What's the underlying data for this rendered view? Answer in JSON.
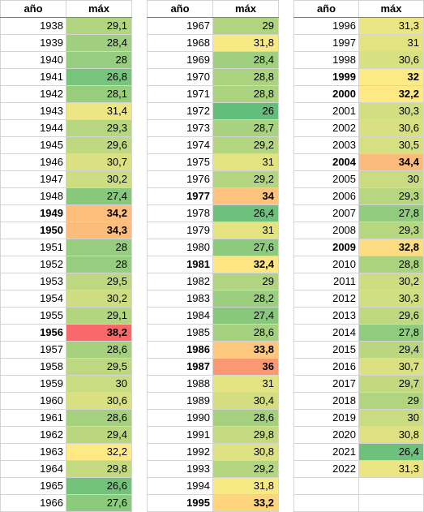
{
  "headers": {
    "year": "año",
    "max": "máx"
  },
  "scale": {
    "min": 26,
    "max": 38.2,
    "low_color": "#63be7b",
    "mid_color": "#ffeb84",
    "high_color": "#f8696b"
  },
  "blocks": [
    [
      {
        "y": "1938",
        "v": "29,1",
        "b": false
      },
      {
        "y": "1939",
        "v": "28,4",
        "b": false
      },
      {
        "y": "1940",
        "v": "28",
        "b": false
      },
      {
        "y": "1941",
        "v": "26,8",
        "b": false
      },
      {
        "y": "1942",
        "v": "28,1",
        "b": false
      },
      {
        "y": "1943",
        "v": "31,4",
        "b": false
      },
      {
        "y": "1944",
        "v": "29,3",
        "b": false
      },
      {
        "y": "1945",
        "v": "29,6",
        "b": false
      },
      {
        "y": "1946",
        "v": "30,7",
        "b": false
      },
      {
        "y": "1947",
        "v": "30,2",
        "b": false
      },
      {
        "y": "1948",
        "v": "27,4",
        "b": false
      },
      {
        "y": "1949",
        "v": "34,2",
        "b": true
      },
      {
        "y": "1950",
        "v": "34,3",
        "b": true
      },
      {
        "y": "1951",
        "v": "28",
        "b": false
      },
      {
        "y": "1952",
        "v": "28",
        "b": false
      },
      {
        "y": "1953",
        "v": "29,5",
        "b": false
      },
      {
        "y": "1954",
        "v": "30,2",
        "b": false
      },
      {
        "y": "1955",
        "v": "29,1",
        "b": false
      },
      {
        "y": "1956",
        "v": "38,2",
        "b": true
      },
      {
        "y": "1957",
        "v": "28,6",
        "b": false
      },
      {
        "y": "1958",
        "v": "29,5",
        "b": false
      },
      {
        "y": "1959",
        "v": "30",
        "b": false
      },
      {
        "y": "1960",
        "v": "30,6",
        "b": false
      },
      {
        "y": "1961",
        "v": "28,6",
        "b": false
      },
      {
        "y": "1962",
        "v": "29,4",
        "b": false
      },
      {
        "y": "1963",
        "v": "32,2",
        "b": false
      },
      {
        "y": "1964",
        "v": "29,8",
        "b": false
      },
      {
        "y": "1965",
        "v": "26,6",
        "b": false
      },
      {
        "y": "1966",
        "v": "27,6",
        "b": false
      }
    ],
    [
      {
        "y": "1967",
        "v": "29",
        "b": false
      },
      {
        "y": "1968",
        "v": "31,8",
        "b": false
      },
      {
        "y": "1969",
        "v": "28,4",
        "b": false
      },
      {
        "y": "1970",
        "v": "28,8",
        "b": false
      },
      {
        "y": "1971",
        "v": "28,8",
        "b": false
      },
      {
        "y": "1972",
        "v": "26",
        "b": false
      },
      {
        "y": "1973",
        "v": "28,7",
        "b": false
      },
      {
        "y": "1974",
        "v": "29,2",
        "b": false
      },
      {
        "y": "1975",
        "v": "31",
        "b": false
      },
      {
        "y": "1976",
        "v": "29,2",
        "b": false
      },
      {
        "y": "1977",
        "v": "34",
        "b": true
      },
      {
        "y": "1978",
        "v": "26,4",
        "b": false
      },
      {
        "y": "1979",
        "v": "31",
        "b": false
      },
      {
        "y": "1980",
        "v": "27,6",
        "b": false
      },
      {
        "y": "1981",
        "v": "32,4",
        "b": true
      },
      {
        "y": "1982",
        "v": "29",
        "b": false
      },
      {
        "y": "1983",
        "v": "28,2",
        "b": false
      },
      {
        "y": "1984",
        "v": "27,4",
        "b": false
      },
      {
        "y": "1985",
        "v": "28,6",
        "b": false
      },
      {
        "y": "1986",
        "v": "33,8",
        "b": true
      },
      {
        "y": "1987",
        "v": "36",
        "b": true
      },
      {
        "y": "1988",
        "v": "31",
        "b": false
      },
      {
        "y": "1989",
        "v": "30,4",
        "b": false
      },
      {
        "y": "1990",
        "v": "28,6",
        "b": false
      },
      {
        "y": "1991",
        "v": "29,8",
        "b": false
      },
      {
        "y": "1992",
        "v": "30,8",
        "b": false
      },
      {
        "y": "1993",
        "v": "29,2",
        "b": false
      },
      {
        "y": "1994",
        "v": "31,8",
        "b": false
      },
      {
        "y": "1995",
        "v": "33,2",
        "b": true
      }
    ],
    [
      {
        "y": "1996",
        "v": "31,3",
        "b": false
      },
      {
        "y": "1997",
        "v": "31",
        "b": false
      },
      {
        "y": "1998",
        "v": "30,6",
        "b": false
      },
      {
        "y": "1999",
        "v": "32",
        "b": true
      },
      {
        "y": "2000",
        "v": "32,2",
        "b": true
      },
      {
        "y": "2001",
        "v": "30,3",
        "b": false
      },
      {
        "y": "2002",
        "v": "30,6",
        "b": false
      },
      {
        "y": "2003",
        "v": "30,5",
        "b": false
      },
      {
        "y": "2004",
        "v": "34,4",
        "b": true
      },
      {
        "y": "2005",
        "v": "30",
        "b": false
      },
      {
        "y": "2006",
        "v": "29,3",
        "b": false
      },
      {
        "y": "2007",
        "v": "27,8",
        "b": false
      },
      {
        "y": "2008",
        "v": "29,3",
        "b": false
      },
      {
        "y": "2009",
        "v": "32,8",
        "b": true
      },
      {
        "y": "2010",
        "v": "28,8",
        "b": false
      },
      {
        "y": "2011",
        "v": "30,2",
        "b": false
      },
      {
        "y": "2012",
        "v": "30,3",
        "b": false
      },
      {
        "y": "2013",
        "v": "29,6",
        "b": false
      },
      {
        "y": "2014",
        "v": "27,8",
        "b": false
      },
      {
        "y": "2015",
        "v": "29,4",
        "b": false
      },
      {
        "y": "2016",
        "v": "30,7",
        "b": false
      },
      {
        "y": "2017",
        "v": "29,7",
        "b": false
      },
      {
        "y": "2018",
        "v": "29",
        "b": false
      },
      {
        "y": "2019",
        "v": "30",
        "b": false
      },
      {
        "y": "2020",
        "v": "30,8",
        "b": false
      },
      {
        "y": "2021",
        "v": "26,4",
        "b": false
      },
      {
        "y": "2022",
        "v": "31,3",
        "b": false
      },
      {
        "y": "",
        "v": "",
        "b": false
      },
      {
        "y": "",
        "v": "",
        "b": false
      }
    ]
  ]
}
